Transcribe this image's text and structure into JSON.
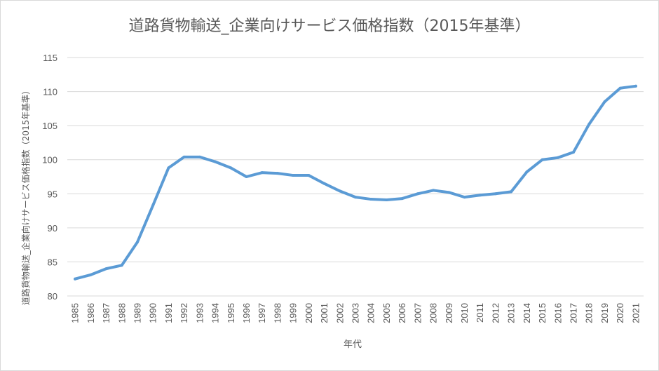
{
  "chart_data": {
    "type": "line",
    "title": "道路貨物輸送_企業向けサービス価格指数（2015年基準）",
    "xlabel": "年代",
    "ylabel": "道路貨物輸送_企業向けサービス価格指数（2015年基準）",
    "ylim": [
      80,
      115
    ],
    "yticks": [
      "80",
      "85",
      "90",
      "95",
      "100",
      "105",
      "110",
      "115"
    ],
    "grid": true,
    "legend": "none",
    "color": "#5b9bd5",
    "categories": [
      "1985",
      "1986",
      "1987",
      "1988",
      "1989",
      "1990",
      "1991",
      "1992",
      "1993",
      "1994",
      "1995",
      "1996",
      "1997",
      "1998",
      "1999",
      "2000",
      "2001",
      "2002",
      "2003",
      "2004",
      "2005",
      "2006",
      "2007",
      "2008",
      "2009",
      "2010",
      "2011",
      "2012",
      "2013",
      "2014",
      "2015",
      "2016",
      "2017",
      "2018",
      "2019",
      "2020",
      "2021"
    ],
    "values": [
      82.5,
      83.1,
      84.0,
      84.5,
      87.9,
      93.3,
      98.8,
      100.4,
      100.4,
      99.7,
      98.8,
      97.5,
      98.1,
      98.0,
      97.7,
      97.7,
      96.5,
      95.4,
      94.5,
      94.2,
      94.1,
      94.3,
      95.0,
      95.5,
      95.2,
      94.5,
      94.8,
      95.0,
      95.3,
      98.2,
      100.0,
      100.3,
      101.1,
      105.2,
      108.5,
      110.5,
      110.8
    ]
  }
}
